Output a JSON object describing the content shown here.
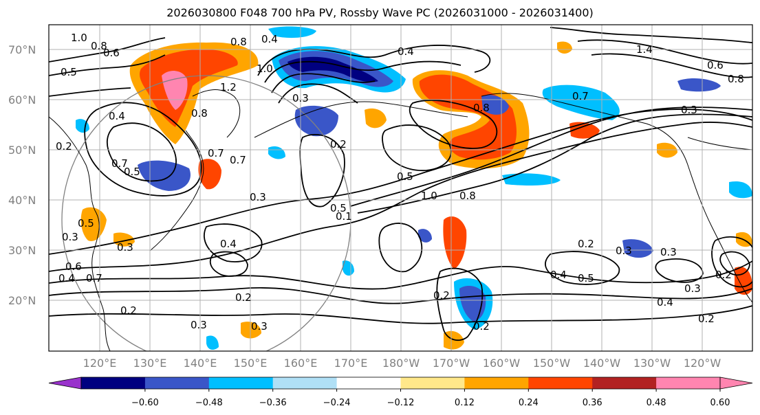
{
  "title": "2026030800 F048 700 hPa PV, Rossby Wave PC (2026031000 - 2026031400)",
  "lat_labels": [
    "70°N",
    "60°N",
    "50°N",
    "40°N",
    "30°N",
    "20°N"
  ],
  "lon_labels": [
    "120°E",
    "130°E",
    "140°E",
    "150°E",
    "160°E",
    "170°E",
    "180°W",
    "170°W",
    "160°W",
    "150°W",
    "140°W",
    "130°W",
    "120°W"
  ],
  "contour_labels": [
    "1.0",
    "0.8",
    "0.6",
    "0.5",
    "0.8",
    "0.4",
    "1.0",
    "0.4",
    "1.4",
    "0.6",
    "0.8",
    "1.2",
    "0.4",
    "0.8",
    "0.3",
    "0.2",
    "0.7",
    "0.7",
    "0.5",
    "0.2",
    "0.7",
    "0.8",
    "1.0",
    "0.8",
    "0.3",
    "0.5",
    "0.3",
    "0.3",
    "0.4",
    "0.5",
    "0.2",
    "0.3",
    "0.2",
    "0.2",
    "0.3",
    "0.3",
    "0.2",
    "0.4",
    "0.2",
    "0.3",
    "0.4",
    "0.5",
    "0.3",
    "0.6",
    "0.7",
    "0.5",
    "0.7",
    "0.4",
    "0.3",
    "0.2",
    "0.1",
    "0.2"
  ],
  "colorbar": {
    "colors": [
      "#9932cc",
      "#000080",
      "#3a56c8",
      "#00bfff",
      "#b0e0f6",
      "#ffffff",
      "#ffe88a",
      "#ffa500",
      "#ff4500",
      "#b22222",
      "#ff85b0",
      "#ff85b0"
    ],
    "ticks": [
      "−0.60",
      "−0.48",
      "−0.36",
      "−0.24",
      "−0.12",
      "0.12",
      "0.24",
      "0.36",
      "0.48",
      "0.60"
    ]
  }
}
